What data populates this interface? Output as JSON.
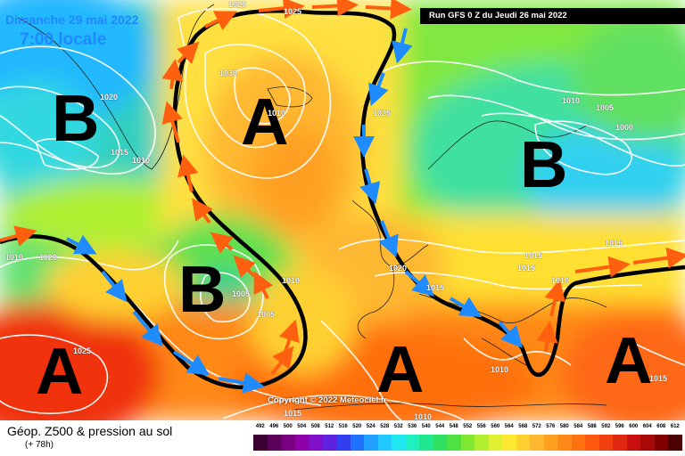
{
  "header": {
    "date_line": "Dimanche 29 mai 2022",
    "time_line": "7:00 locale",
    "run_label": "Run GFS 0 Z du Jeudi 26 mai 2022"
  },
  "pressure_centers": [
    {
      "id": "low-greenland",
      "label": "B"
    },
    {
      "id": "high-iceland",
      "label": "A"
    },
    {
      "id": "low-scandinavia",
      "label": "B"
    },
    {
      "id": "low-atlantic",
      "label": "B"
    },
    {
      "id": "high-azores",
      "label": "A"
    },
    {
      "id": "high-iberia",
      "label": "A"
    },
    {
      "id": "high-mediterranean",
      "label": "A"
    }
  ],
  "isobar_labels": [
    {
      "id": "iso-1020-top",
      "text": "1020"
    },
    {
      "id": "iso-1025-top",
      "text": "1025"
    },
    {
      "id": "iso-1030",
      "text": "1030"
    },
    {
      "id": "iso-1020-greenland",
      "text": "1020"
    },
    {
      "id": "iso-1015-greenland",
      "text": "1015"
    },
    {
      "id": "iso-1010-greenland",
      "text": "1010"
    },
    {
      "id": "iso-1010-a",
      "text": "1010"
    },
    {
      "id": "iso-1025-norway",
      "text": "1025"
    },
    {
      "id": "iso-1010-scand",
      "text": "1010"
    },
    {
      "id": "iso-1005-scand",
      "text": "1005"
    },
    {
      "id": "iso-1000-scand",
      "text": "1000"
    },
    {
      "id": "iso-1015-russia",
      "text": "1015"
    },
    {
      "id": "iso-1015-baltic",
      "text": "1015"
    },
    {
      "id": "iso-1020-europe",
      "text": "1020"
    },
    {
      "id": "iso-1015-europe",
      "text": "1015"
    },
    {
      "id": "iso-1015-alps",
      "text": "1015"
    },
    {
      "id": "iso-1020-west",
      "text": "1020"
    },
    {
      "id": "iso-1010-west",
      "text": "1010"
    },
    {
      "id": "iso-1005-low",
      "text": "1005"
    },
    {
      "id": "iso-1010-low",
      "text": "1010"
    },
    {
      "id": "iso-1025-azores",
      "text": "1025"
    },
    {
      "id": "iso-1010-italy",
      "text": "1010"
    },
    {
      "id": "iso-1005-low2",
      "text": "1005"
    },
    {
      "id": "iso-1015-bottom",
      "text": "1015"
    },
    {
      "id": "iso-1010-bottom",
      "text": "1010"
    },
    {
      "id": "iso-1010-right",
      "text": "1010"
    },
    {
      "id": "iso-1015-greece",
      "text": "1015"
    }
  ],
  "copyright": "Copyright © 2022 Meteociel.fr",
  "legend": {
    "title": "Géop. Z500 & pression au sol",
    "subtitle": "(+ 78h)",
    "scale_values": [
      "492",
      "496",
      "500",
      "504",
      "508",
      "512",
      "516",
      "520",
      "524",
      "528",
      "532",
      "536",
      "540",
      "544",
      "548",
      "552",
      "556",
      "560",
      "564",
      "568",
      "572",
      "576",
      "580",
      "584",
      "588",
      "592",
      "596",
      "600",
      "604",
      "608",
      "612"
    ],
    "scale_colors": [
      "#3a0032",
      "#5a0058",
      "#7a0082",
      "#9000a8",
      "#8010c8",
      "#6020e0",
      "#3040f0",
      "#2070ff",
      "#20a0ff",
      "#20c8ff",
      "#20e8f0",
      "#20f0c0",
      "#20e890",
      "#30e060",
      "#50e040",
      "#80e830",
      "#b0f030",
      "#e0f030",
      "#ffe830",
      "#ffd030",
      "#ffb830",
      "#ffa020",
      "#ff8818",
      "#ff7010",
      "#ff5810",
      "#f04010",
      "#e02810",
      "#c81010",
      "#a80808",
      "#800000",
      "#4a0000"
    ]
  },
  "colors": {
    "header_text": "#1e88ff",
    "jet_axis": "#000000",
    "arrow_warm": "#ff6010",
    "arrow_cold": "#1e8cff"
  }
}
